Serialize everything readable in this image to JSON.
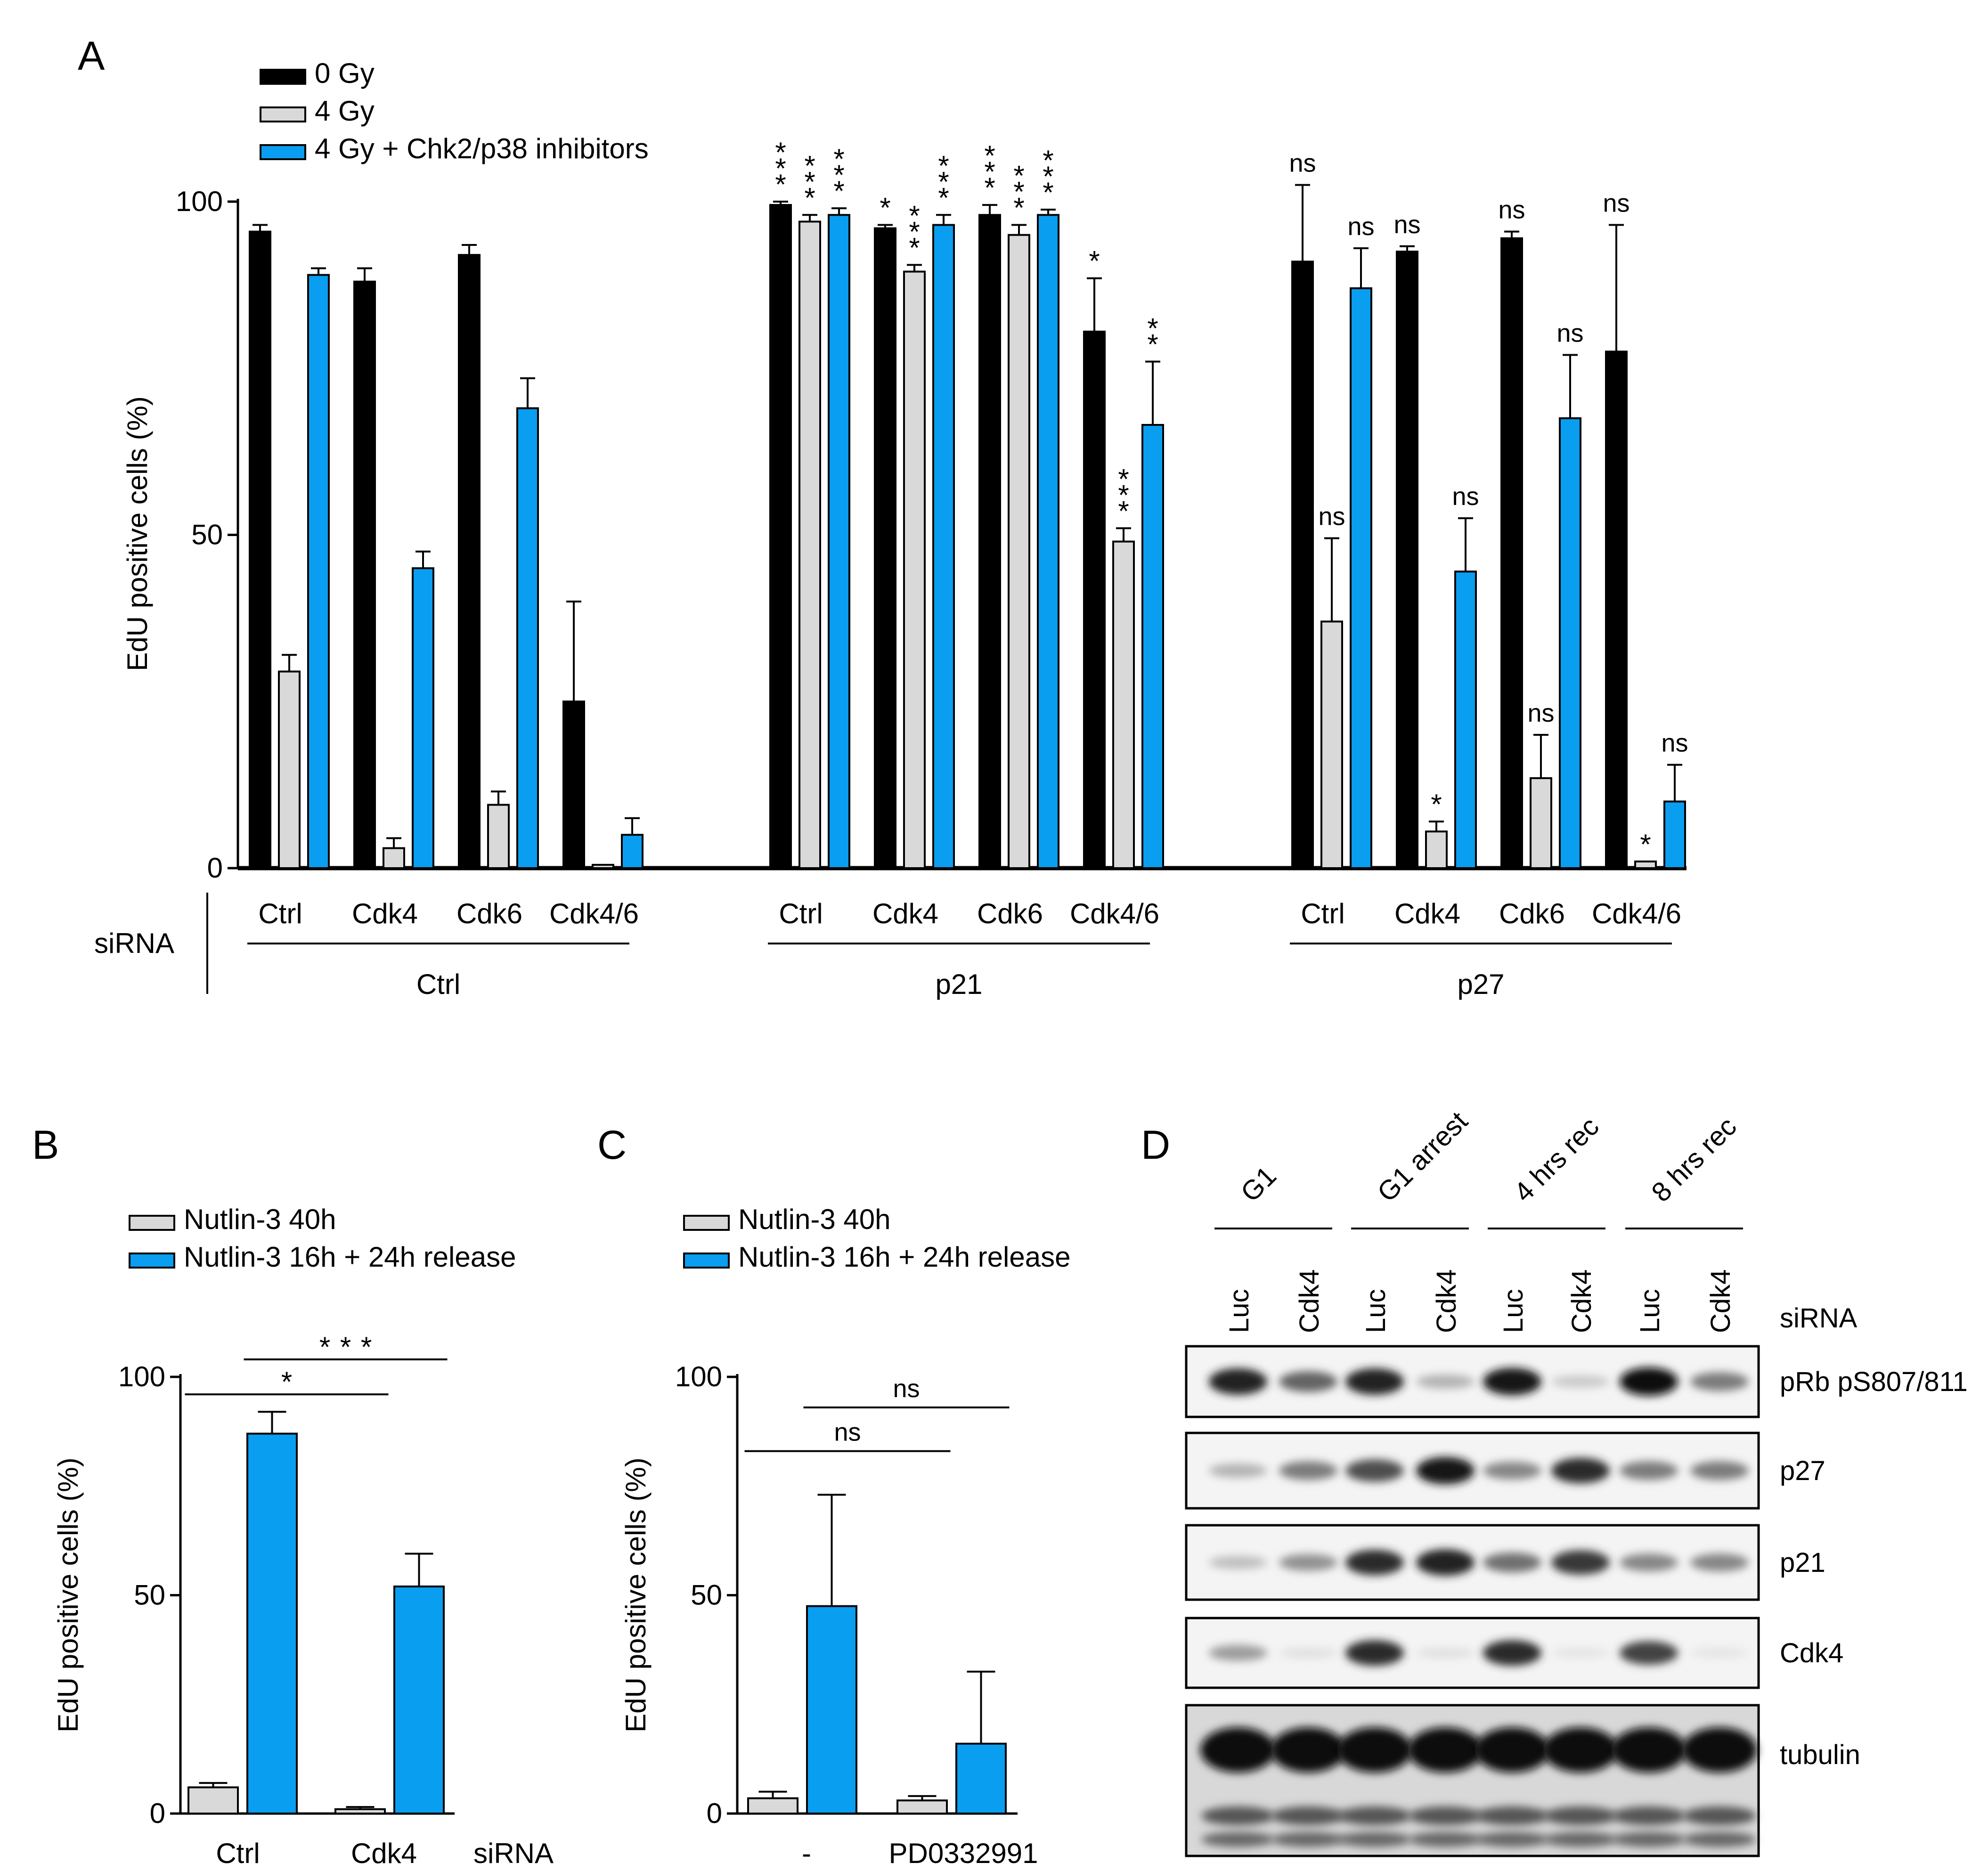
{
  "colors": {
    "black": "#000000",
    "gray": "#d9d9d9",
    "blue": "#0a9ef0"
  },
  "panels": {
    "a": "A",
    "b": "B",
    "c": "C",
    "d": "D"
  },
  "chart_data": [
    {
      "panel": "A",
      "type": "bar",
      "ylabel": "EdU positive cells (%)",
      "ylim": [
        0,
        100
      ],
      "yticks": [
        0,
        50,
        100
      ],
      "siRNA_label": "siRNA",
      "series": [
        {
          "name": "0 Gy",
          "color": "#000000"
        },
        {
          "name": "4 Gy",
          "color": "#d9d9d9"
        },
        {
          "name": "4 Gy + Chk2/p38 inhibitors",
          "color": "#0a9ef0"
        }
      ],
      "groups": [
        {
          "label": "Ctrl",
          "subgroups": [
            {
              "label": "Ctrl",
              "values": [
                95.5,
                29.5,
                89
              ],
              "errors": [
                1,
                2.5,
                1
              ],
              "sig": [
                "",
                "",
                ""
              ]
            },
            {
              "label": "Cdk4",
              "values": [
                88,
                3,
                45
              ],
              "errors": [
                2,
                1.5,
                2.5
              ],
              "sig": [
                "",
                "",
                ""
              ]
            },
            {
              "label": "Cdk6",
              "values": [
                92,
                9.5,
                69
              ],
              "errors": [
                1.5,
                2,
                4.5
              ],
              "sig": [
                "",
                "",
                ""
              ]
            },
            {
              "label": "Cdk4/6",
              "values": [
                25,
                0.5,
                5
              ],
              "errors": [
                15,
                0,
                2.5
              ],
              "sig": [
                "",
                "",
                ""
              ]
            }
          ]
        },
        {
          "label": "p21",
          "subgroups": [
            {
              "label": "Ctrl",
              "values": [
                99.5,
                97,
                98
              ],
              "errors": [
                0.5,
                1,
                1
              ],
              "sig": [
                "***",
                "***",
                "***"
              ]
            },
            {
              "label": "Cdk4",
              "values": [
                96,
                89.5,
                96.5
              ],
              "errors": [
                0.5,
                1,
                1.5
              ],
              "sig": [
                "*",
                "***",
                "***"
              ]
            },
            {
              "label": "Cdk6",
              "values": [
                98,
                95,
                98
              ],
              "errors": [
                1.5,
                1.5,
                0.8
              ],
              "sig": [
                "***",
                "***",
                "***"
              ]
            },
            {
              "label": "Cdk4/6",
              "values": [
                80.5,
                49,
                66.5
              ],
              "errors": [
                8,
                2,
                9.5
              ],
              "sig": [
                "*",
                "***",
                "**"
              ]
            }
          ]
        },
        {
          "label": "p27",
          "subgroups": [
            {
              "label": "Ctrl",
              "values": [
                91,
                37,
                87
              ],
              "errors": [
                11.5,
                12.5,
                6
              ],
              "sig": [
                "ns",
                "ns",
                "ns"
              ]
            },
            {
              "label": "Cdk4",
              "values": [
                92.5,
                5.5,
                44.5
              ],
              "errors": [
                0.8,
                1.5,
                8
              ],
              "sig": [
                "ns",
                "*",
                "ns"
              ]
            },
            {
              "label": "Cdk6",
              "values": [
                94.5,
                13.5,
                67.5
              ],
              "errors": [
                1,
                6.5,
                9.5
              ],
              "sig": [
                "ns",
                "ns",
                "ns"
              ]
            },
            {
              "label": "Cdk4/6",
              "values": [
                77.5,
                1,
                10
              ],
              "errors": [
                19,
                0,
                5.5
              ],
              "sig": [
                "ns",
                "*",
                "ns"
              ]
            }
          ]
        }
      ]
    },
    {
      "panel": "B",
      "type": "bar",
      "ylabel": "EdU positive cells (%)",
      "ylim": [
        0,
        100
      ],
      "yticks": [
        0,
        50,
        100
      ],
      "categories": [
        "Ctrl",
        "Cdk4"
      ],
      "xsuffix": "siRNA",
      "series": [
        {
          "name": "Nutlin-3 40h",
          "color": "#d9d9d9",
          "values": [
            6,
            1
          ],
          "errors": [
            1,
            0.5
          ]
        },
        {
          "name": "Nutlin-3 16h + 24h release",
          "color": "#0a9ef0",
          "values": [
            87,
            52
          ],
          "errors": [
            5,
            7.5
          ]
        }
      ],
      "comparisons": [
        {
          "text": "*",
          "y": 96
        },
        {
          "text": "***",
          "y": 104
        }
      ]
    },
    {
      "panel": "C",
      "type": "bar",
      "ylabel": "EdU positive cells (%)",
      "ylim": [
        0,
        100
      ],
      "yticks": [
        0,
        50,
        100
      ],
      "categories": [
        "-",
        "PD0332991"
      ],
      "series": [
        {
          "name": "Nutlin-3 40h",
          "color": "#d9d9d9",
          "values": [
            3.5,
            3
          ],
          "errors": [
            1.5,
            1
          ]
        },
        {
          "name": "Nutlin-3 16h + 24h release",
          "color": "#0a9ef0",
          "values": [
            47.5,
            16
          ],
          "errors": [
            25.5,
            16.5
          ]
        }
      ],
      "comparisons": [
        {
          "text": "ns",
          "y": 83
        },
        {
          "text": "ns",
          "y": 93
        }
      ]
    }
  ],
  "western_blot": {
    "conditions": [
      "G1",
      "G1 arrest",
      "4 hrs rec",
      "8 hrs rec"
    ],
    "lanes": [
      "Luc",
      "Cdk4",
      "Luc",
      "Cdk4",
      "Luc",
      "Cdk4",
      "Luc",
      "Cdk4"
    ],
    "lane_label": "siRNA",
    "blots": [
      {
        "name": "pRb pS807/811",
        "intensity": [
          0.9,
          0.6,
          0.9,
          0.25,
          0.95,
          0.15,
          1.0,
          0.5
        ]
      },
      {
        "name": "p27",
        "intensity": [
          0.25,
          0.5,
          0.7,
          0.95,
          0.45,
          0.85,
          0.5,
          0.5
        ]
      },
      {
        "name": "p21",
        "intensity": [
          0.2,
          0.4,
          0.85,
          0.9,
          0.55,
          0.8,
          0.45,
          0.45
        ]
      },
      {
        "name": "Cdk4",
        "intensity": [
          0.35,
          0.05,
          0.85,
          0.05,
          0.85,
          0.03,
          0.75,
          0.03
        ]
      },
      {
        "name": "tubulin",
        "intensity": [
          1,
          1,
          1,
          1,
          1,
          1,
          1,
          1
        ]
      }
    ]
  }
}
